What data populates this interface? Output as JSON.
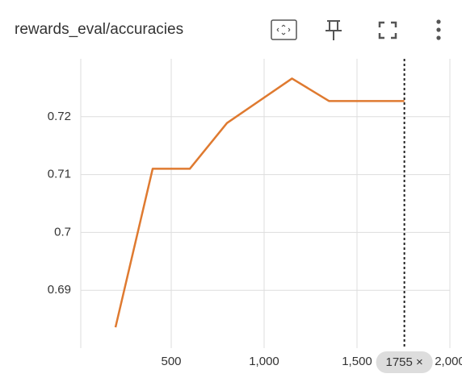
{
  "chart_data": {
    "type": "line",
    "title": "rewards_eval/accuracies",
    "x": [
      200,
      400,
      600,
      800,
      1150,
      1350,
      1755
    ],
    "series": [
      {
        "name": "rewards_eval/accuracies",
        "color": "#df7a30",
        "values": [
          0.6836,
          0.711,
          0.711,
          0.7189,
          0.7266,
          0.7227,
          0.7227
        ]
      }
    ],
    "xlim": [
      0,
      2000
    ],
    "xticks": [
      500,
      {
        "value": 1000,
        "label": "1,000"
      },
      {
        "value": 1500,
        "label": "1,500"
      },
      {
        "value": 2000,
        "label": "2,000"
      }
    ],
    "ylim": [
      0.68,
      0.73
    ],
    "yticks": [
      0.69,
      0.7,
      0.71,
      0.72
    ],
    "grid": true,
    "hover": {
      "value": 1755,
      "label": "1755 ×"
    }
  }
}
